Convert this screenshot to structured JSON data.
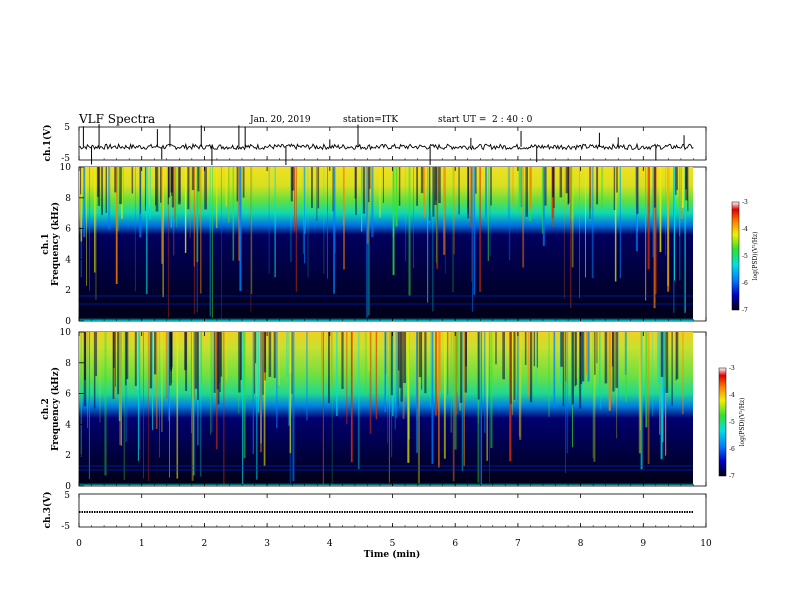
{
  "header": {
    "title": "VLF Spectra",
    "date": "Jan. 20, 2019",
    "station": "station=ITK",
    "start_prefix": "start UT =",
    "start_time": "2 : 40 : 0"
  },
  "colors": {
    "background": "#ffffff",
    "axis": "#000000",
    "spectrogram_floor": "#000018",
    "colormap": [
      "#000010",
      "#0000c8",
      "#0080ff",
      "#00e0e0",
      "#30e030",
      "#f0f000",
      "#ff8000",
      "#e00000",
      "#ffffff"
    ]
  },
  "chart_data": [
    {
      "type": "line",
      "panel": "ch1-waveform",
      "ylabel": "ch.1(V)",
      "ylim": [
        -5,
        5
      ],
      "yticks": [
        "5",
        "-5"
      ],
      "baseline": -1,
      "spikes_x_min": [
        0.07,
        0.2,
        0.32,
        1.25,
        1.32,
        1.45,
        1.95,
        2.12,
        2.55,
        2.65,
        3.3,
        4.0,
        4.45,
        5.6,
        6.25,
        7.05,
        7.3,
        8.3,
        8.6,
        9.2,
        9.65
      ]
    },
    {
      "type": "heatmap",
      "panel": "ch1-spectrogram",
      "ylabel": "ch.1",
      "ylabel2": "Frequency (kHz)",
      "ylim": [
        0,
        10
      ],
      "yticks": [
        "0",
        "2",
        "4",
        "6",
        "8",
        "10"
      ],
      "colorbar": {
        "label": "log(PSD)(V²/Hz)",
        "range": [
          -7,
          -3
        ],
        "ticks": [
          "-3",
          "-4",
          "-5",
          "-6",
          "-7"
        ]
      },
      "noise_floor_khz": 6.5
    },
    {
      "type": "heatmap",
      "panel": "ch2-spectrogram",
      "ylabel": "ch.2",
      "ylabel2": "Frequency (kHz)",
      "ylim": [
        0,
        10
      ],
      "yticks": [
        "0",
        "2",
        "4",
        "6",
        "8",
        "10"
      ],
      "colorbar": {
        "label": "log(PSD)(V²/Hz)",
        "range": [
          -7,
          -3
        ],
        "ticks": [
          "-3",
          "-4",
          "-5",
          "-6",
          "-7"
        ]
      },
      "noise_floor_khz": 5.0
    },
    {
      "type": "line",
      "panel": "ch3-waveform",
      "ylabel": "ch.3(V)",
      "ylim": [
        -5,
        5
      ],
      "yticks": [
        "5",
        "-5"
      ],
      "baseline": -1.5
    }
  ],
  "xaxis": {
    "label": "Time (min)",
    "range": [
      0,
      10
    ],
    "ticks": [
      "0",
      "1",
      "2",
      "3",
      "4",
      "5",
      "6",
      "7",
      "8",
      "9",
      "10"
    ],
    "data_end_min": 9.8
  }
}
